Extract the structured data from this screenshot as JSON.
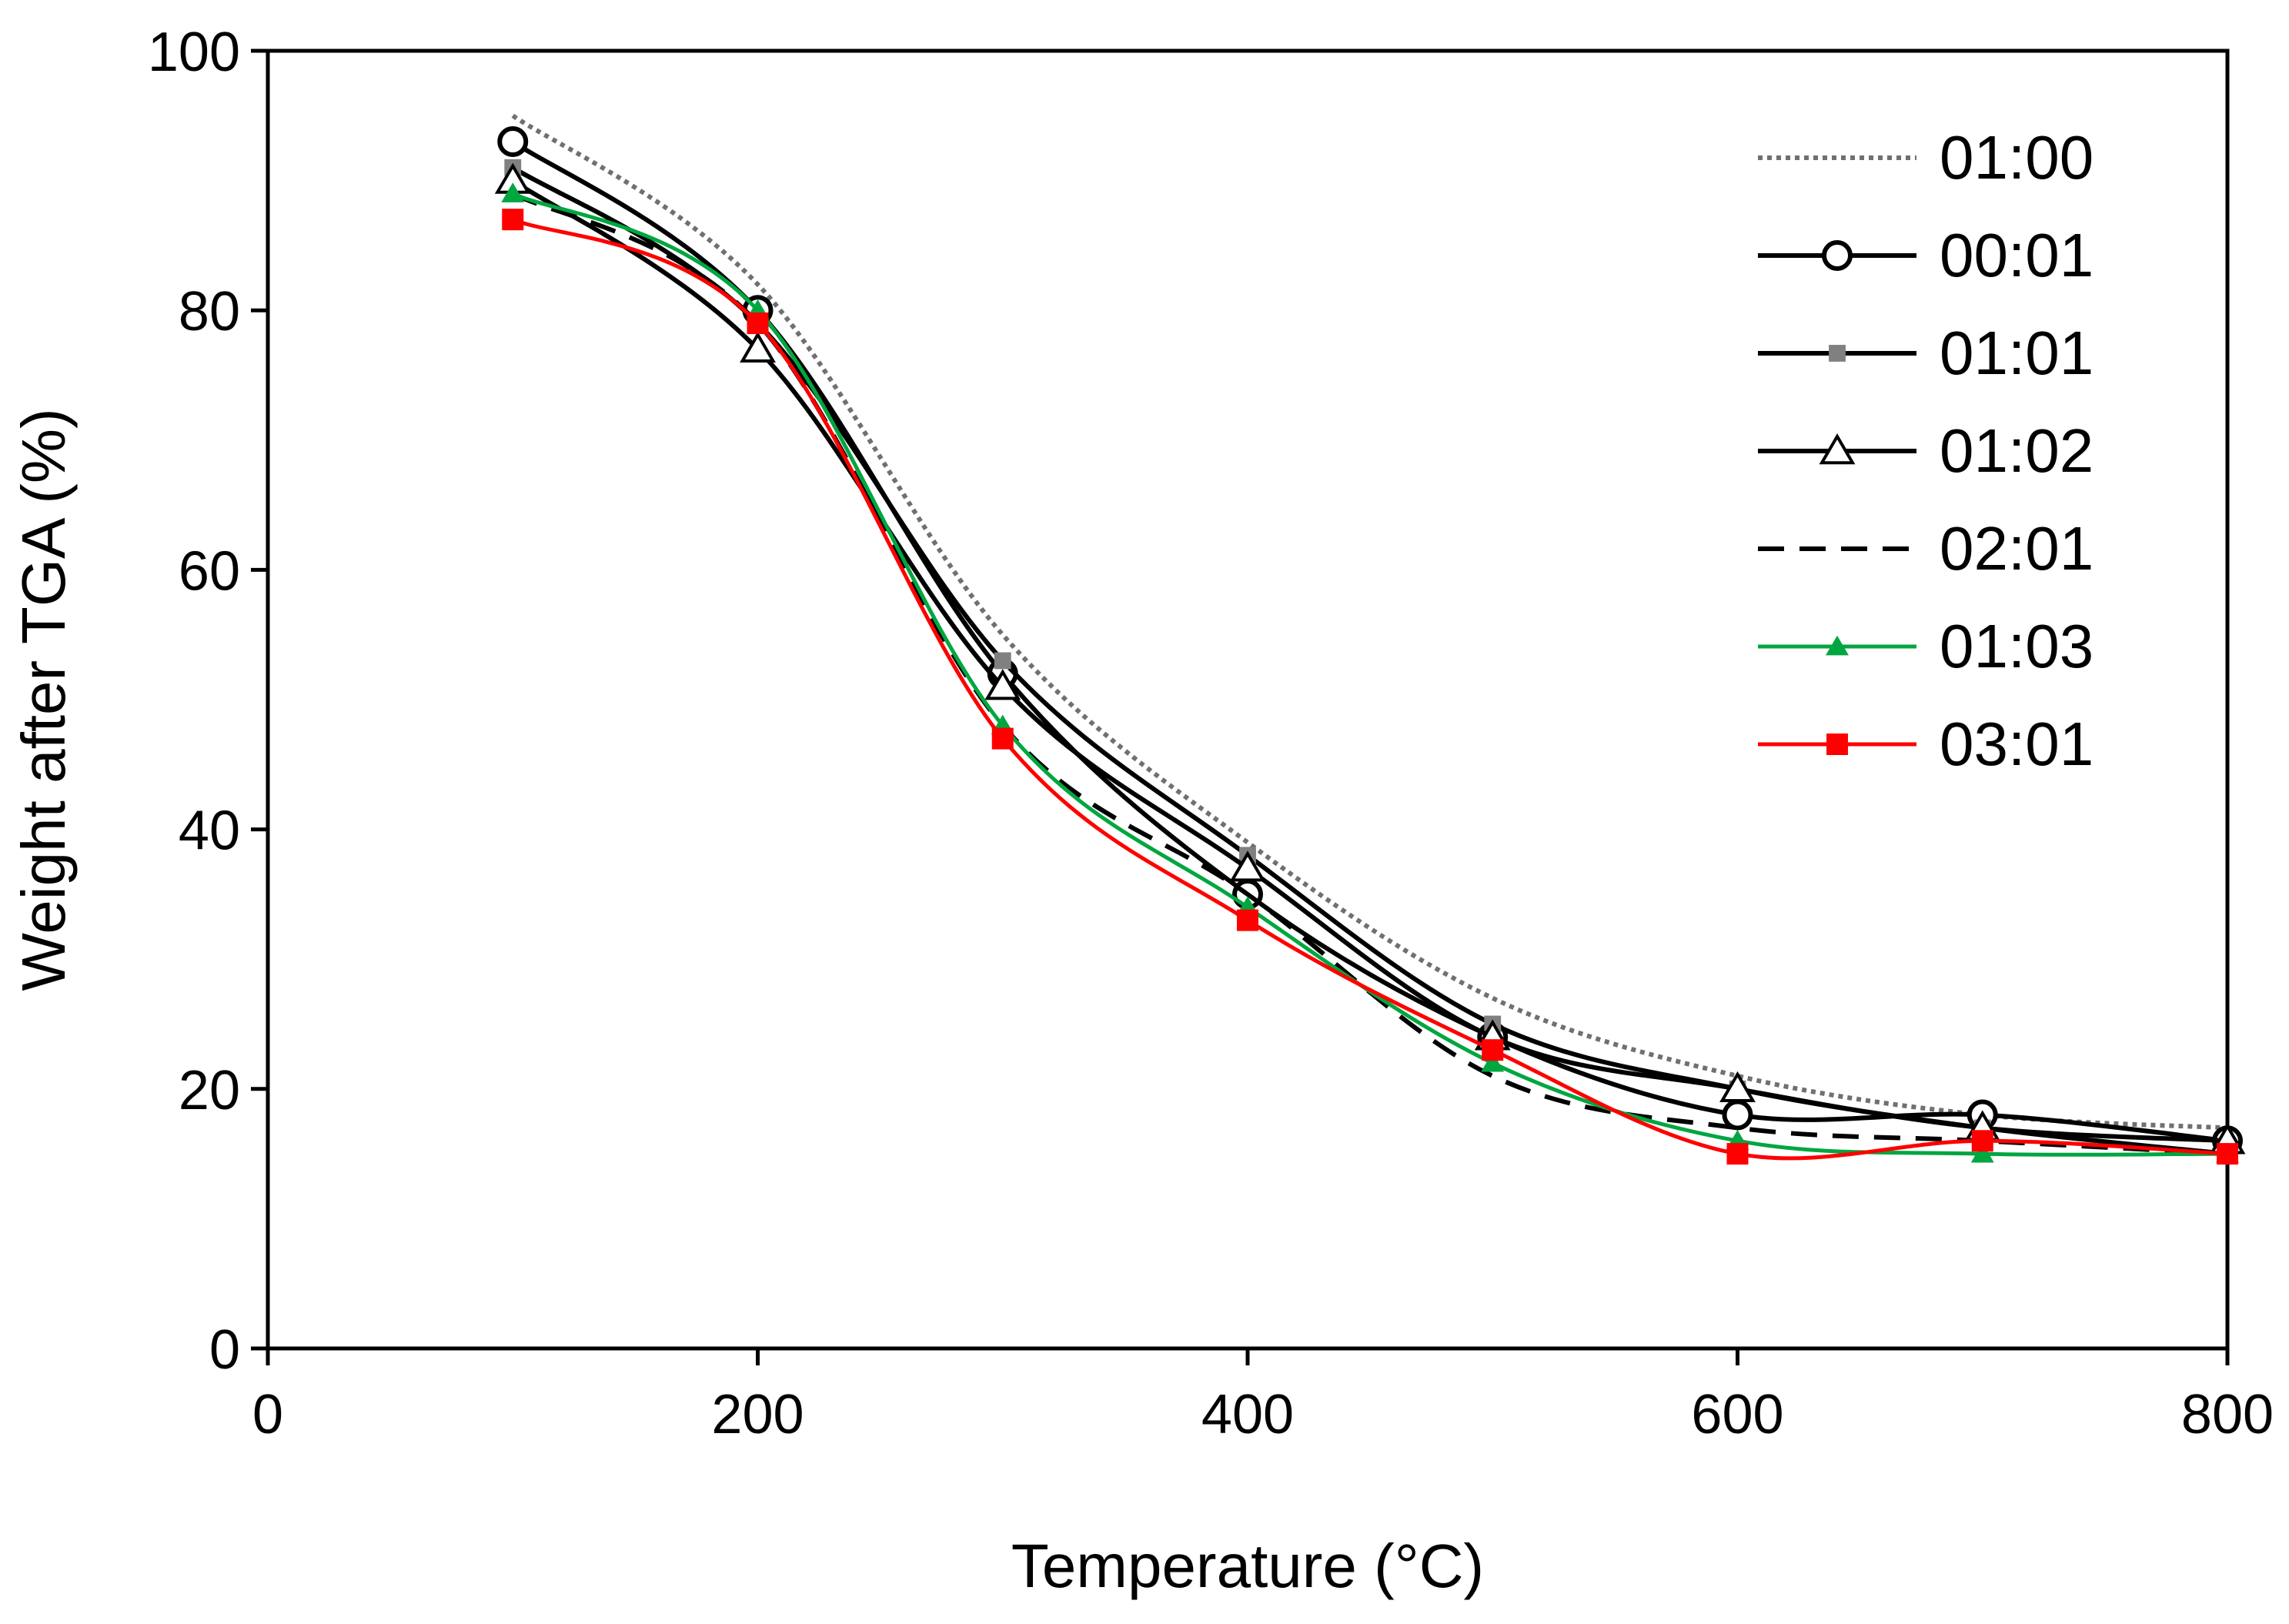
{
  "chart_data": {
    "type": "line",
    "title": "",
    "xlabel": "Temperature (°C)",
    "ylabel": "Weight after TGA (%)",
    "xlim": [
      0,
      800
    ],
    "ylim": [
      0,
      100
    ],
    "x_ticks": [
      0,
      200,
      400,
      600,
      800
    ],
    "y_ticks": [
      0,
      20,
      40,
      60,
      80,
      100
    ],
    "x_tick_labels": [
      "0",
      "200",
      "400",
      "600",
      "800"
    ],
    "y_tick_labels": [
      "0",
      "20",
      "40",
      "60",
      "80",
      "100"
    ],
    "grid": false,
    "legend_position": "top-right",
    "series": [
      {
        "name": "01:00",
        "color": "#707070",
        "line_style": "dotted",
        "marker": "none",
        "x": [
          100,
          200,
          300,
          400,
          500,
          600,
          700,
          800
        ],
        "y": [
          95,
          82,
          55,
          39,
          27,
          21,
          18,
          17
        ]
      },
      {
        "name": "00:01",
        "color": "#000000",
        "line_style": "solid",
        "marker": "open-circle",
        "x": [
          100,
          200,
          300,
          400,
          500,
          600,
          700,
          800
        ],
        "y": [
          93,
          80,
          52,
          35,
          24,
          18,
          18,
          16
        ]
      },
      {
        "name": "01:01",
        "color": "#000000",
        "marker_color": "#808080",
        "line_style": "solid",
        "marker": "filled-square",
        "x": [
          100,
          200,
          300,
          400,
          500,
          600,
          700,
          800
        ],
        "y": [
          91,
          79,
          53,
          38,
          25,
          20,
          17,
          15
        ]
      },
      {
        "name": "01:02",
        "color": "#000000",
        "line_style": "solid",
        "marker": "open-triangle",
        "x": [
          100,
          200,
          300,
          400,
          500,
          600,
          700,
          800
        ],
        "y": [
          90,
          77,
          51,
          37,
          24,
          20,
          17,
          16
        ]
      },
      {
        "name": "02:01",
        "color": "#000000",
        "line_style": "dashed",
        "marker": "none",
        "x": [
          100,
          200,
          300,
          400,
          500,
          600,
          700,
          800
        ],
        "y": [
          89,
          79,
          48,
          35,
          21,
          17,
          16,
          15
        ]
      },
      {
        "name": "01:03",
        "color": "#00A640",
        "line_style": "solid",
        "marker": "filled-triangle",
        "x": [
          100,
          200,
          300,
          400,
          500,
          600,
          700,
          800
        ],
        "y": [
          89,
          80,
          48,
          34,
          22,
          16,
          15,
          15
        ]
      },
      {
        "name": "03:01",
        "color": "#FF0000",
        "line_style": "solid",
        "marker": "filled-square",
        "x": [
          100,
          200,
          300,
          400,
          500,
          600,
          700,
          800
        ],
        "y": [
          87,
          79,
          47,
          33,
          23,
          15,
          16,
          15
        ]
      }
    ]
  }
}
